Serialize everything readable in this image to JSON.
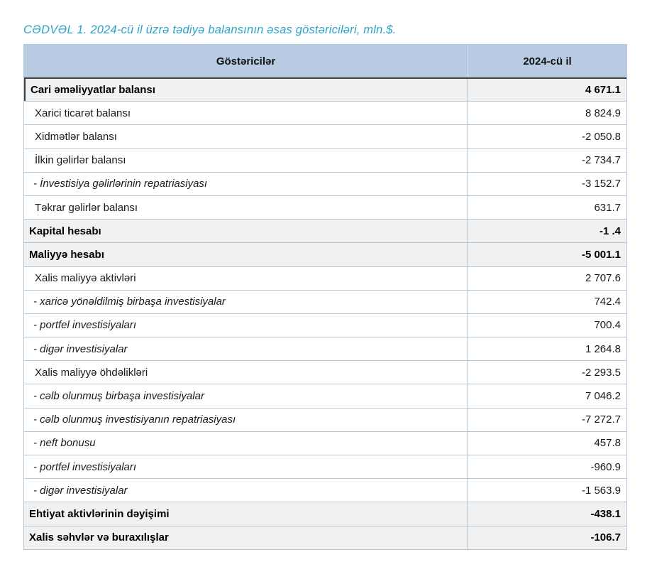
{
  "title": "CƏDVƏL 1. 2024-cü il üzrə tədiyə balansının əsas göstəriciləri, mln.$.",
  "columns": {
    "indicators": "Göstəricilər",
    "year": "2024-cü il"
  },
  "colors": {
    "title_text": "#2fa3c7",
    "header_bg": "#b8cbe3",
    "shaded_row_bg": "#f1f1f1",
    "border": "#b3c6da",
    "dark_border": "#3f3f3f"
  },
  "rows": [
    {
      "label": "Cari əməliyyatlar balansı",
      "value": "4 671.1",
      "bold": true,
      "italic": false,
      "shaded": true,
      "indent": 0
    },
    {
      "label": "Xarici ticarət balansı",
      "value": "8 824.9",
      "bold": false,
      "italic": false,
      "shaded": false,
      "indent": 1
    },
    {
      "label": "Xidmətlər balansı",
      "value": "-2 050.8",
      "bold": false,
      "italic": false,
      "shaded": false,
      "indent": 1
    },
    {
      "label": "İlkin gəlirlər balansı",
      "value": "-2 734.7",
      "bold": false,
      "italic": false,
      "shaded": false,
      "indent": 1
    },
    {
      "label": "- İnvestisiya gəlirlərinin repatriasiyası",
      "value": "-3 152.7",
      "bold": false,
      "italic": true,
      "shaded": false,
      "indent": 2
    },
    {
      "label": "Təkrar gəlirlər balansı",
      "value": "631.7",
      "bold": false,
      "italic": false,
      "shaded": false,
      "indent": 1
    },
    {
      "label": "Kapital hesabı",
      "value": "-1 .4",
      "bold": true,
      "italic": false,
      "shaded": true,
      "indent": 0
    },
    {
      "label": "Maliyyə hesabı",
      "value": "-5 001.1",
      "bold": true,
      "italic": false,
      "shaded": true,
      "indent": 0
    },
    {
      "label": "Xalis maliyyə aktivləri",
      "value": "2 707.6",
      "bold": false,
      "italic": false,
      "shaded": false,
      "indent": 1
    },
    {
      "label": "- xaricə yönəldilmiş birbaşa investisiyalar",
      "value": "742.4",
      "bold": false,
      "italic": true,
      "shaded": false,
      "indent": 2
    },
    {
      "label": "- portfel investisiyaları",
      "value": "700.4",
      "bold": false,
      "italic": true,
      "shaded": false,
      "indent": 2
    },
    {
      "label": "- digər investisiyalar",
      "value": "1 264.8",
      "bold": false,
      "italic": true,
      "shaded": false,
      "indent": 2
    },
    {
      "label": "Xalis maliyyə öhdəlikləri",
      "value": "-2 293.5",
      "bold": false,
      "italic": false,
      "shaded": false,
      "indent": 1
    },
    {
      "label": "- cəlb olunmuş birbaşa investisiyalar",
      "value": "7 046.2",
      "bold": false,
      "italic": true,
      "shaded": false,
      "indent": 2
    },
    {
      "label": "- cəlb olunmuş investisiyanın repatriasiyası",
      "value": "-7 272.7",
      "bold": false,
      "italic": true,
      "shaded": false,
      "indent": 2
    },
    {
      "label": "- neft bonusu",
      "value": "457.8",
      "bold": false,
      "italic": true,
      "shaded": false,
      "indent": 2
    },
    {
      "label": "- portfel investisiyaları",
      "value": "-960.9",
      "bold": false,
      "italic": true,
      "shaded": false,
      "indent": 2
    },
    {
      "label": "- digər investisiyalar",
      "value": "-1 563.9",
      "bold": false,
      "italic": true,
      "shaded": false,
      "indent": 2
    },
    {
      "label": "Ehtiyat aktivlərinin dəyişimi",
      "value": "-438.1",
      "bold": true,
      "italic": false,
      "shaded": true,
      "indent": 0
    },
    {
      "label": "Xalis səhvlər və buraxılışlar",
      "value": "-106.7",
      "bold": true,
      "italic": false,
      "shaded": true,
      "indent": 0
    }
  ]
}
